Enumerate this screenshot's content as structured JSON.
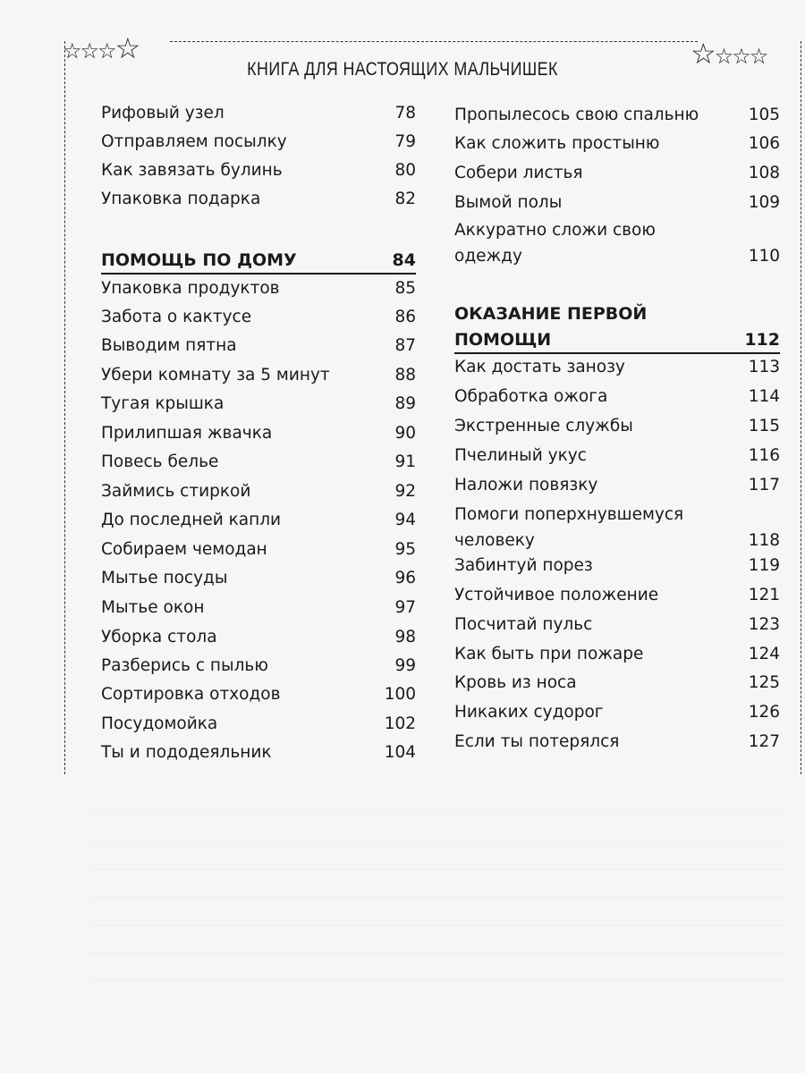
{
  "header": {
    "title": "КНИГА ДЛЯ НАСТОЯЩИХ МАЛЬЧИШЕК"
  },
  "left_column": [
    {
      "title": "Рифовый узел",
      "page": "78"
    },
    {
      "title": "Отправляем посылку",
      "page": "79"
    },
    {
      "title": "Как завязать булинь",
      "page": "80"
    },
    {
      "title": "Упаковка подарка",
      "page": "82"
    },
    {
      "title": "ПОМОЩЬ ПО ДОМУ",
      "page": "84",
      "heading": true
    },
    {
      "title": "Упаковка продуктов",
      "page": "85"
    },
    {
      "title": "Забота о кактусе",
      "page": "86"
    },
    {
      "title": "Выводим пятна",
      "page": "87"
    },
    {
      "title": "Убери комнату за 5 минут",
      "page": "88"
    },
    {
      "title": "Тугая крышка",
      "page": "89"
    },
    {
      "title": "Прилипшая жвачка",
      "page": "90"
    },
    {
      "title": "Повесь белье",
      "page": "91"
    },
    {
      "title": "Займись стиркой",
      "page": "92"
    },
    {
      "title": "До последней капли",
      "page": "94"
    },
    {
      "title": "Собираем чемодан",
      "page": "95"
    },
    {
      "title": "Мытье посуды",
      "page": "96"
    },
    {
      "title": "Мытье окон",
      "page": "97"
    },
    {
      "title": "Уборка стола",
      "page": "98"
    },
    {
      "title": "Разберись с пылью",
      "page": "99"
    },
    {
      "title": "Сортировка отходов",
      "page": "100"
    },
    {
      "title": "Посудомойка",
      "page": "102"
    },
    {
      "title": "Ты и пододеяльник",
      "page": "104"
    }
  ],
  "right_column": [
    {
      "title": "Пропылесось свою спальню",
      "page": "105"
    },
    {
      "title": "Как сложить простыню",
      "page": "106"
    },
    {
      "title": "Собери листья",
      "page": "108"
    },
    {
      "title": "Вымой полы",
      "page": "109"
    },
    {
      "title": "Аккуратно сложи свою",
      "title2": "одежду",
      "page": "110"
    },
    {
      "title": "ОКАЗАНИЕ ПЕРВОЙ",
      "title2": "ПОМОЩИ",
      "page": "112",
      "heading": true
    },
    {
      "title": "Как достать занозу",
      "page": "113"
    },
    {
      "title": "Обработка ожога",
      "page": "114"
    },
    {
      "title": "Экстренные службы",
      "page": "115"
    },
    {
      "title": "Пчелиный укус",
      "page": "116"
    },
    {
      "title": "Наложи повязку",
      "page": "117"
    },
    {
      "title": "Помоги поперхнувшемуся",
      "title2": "человеку",
      "page": "118"
    },
    {
      "title": "Забинтуй порез",
      "page": "119"
    },
    {
      "title": "Устойчивое положение",
      "page": "121"
    },
    {
      "title": "Посчитай пульс",
      "page": "123"
    },
    {
      "title": "Как быть при пожаре",
      "page": "124"
    },
    {
      "title": "Кровь из носа",
      "page": "125"
    },
    {
      "title": "Никаких судорог",
      "page": "126"
    },
    {
      "title": "Если ты потерялся",
      "page": "127"
    }
  ]
}
